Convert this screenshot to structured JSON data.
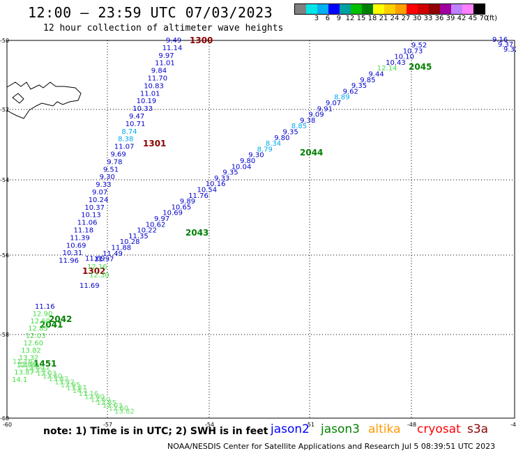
{
  "header": {
    "title": "12:00 — 23:59 UTC 07/03/2023",
    "subtitle": "12 hour collection of altimeter wave heights"
  },
  "legend": {
    "unit_label": "(ft)",
    "bins": [
      {
        "label": "",
        "color": "#808080"
      },
      {
        "label": "3",
        "color": "#00e5e5"
      },
      {
        "label": "6",
        "color": "#00b0f0"
      },
      {
        "label": "9",
        "color": "#0000ff"
      },
      {
        "label": "12",
        "color": "#00a0a0"
      },
      {
        "label": "15",
        "color": "#00c000"
      },
      {
        "label": "18",
        "color": "#008000"
      },
      {
        "label": "21",
        "color": "#ffff00"
      },
      {
        "label": "24",
        "color": "#ffd000"
      },
      {
        "label": "27",
        "color": "#ffa000"
      },
      {
        "label": "30",
        "color": "#ff0000"
      },
      {
        "label": "33",
        "color": "#d00000"
      },
      {
        "label": "36",
        "color": "#900000"
      },
      {
        "label": "39",
        "color": "#a000a0"
      },
      {
        "label": "42",
        "color": "#c080ff"
      },
      {
        "label": "45",
        "color": "#ff80ff"
      },
      {
        "label": "70",
        "color": "#000000"
      }
    ]
  },
  "axes": {
    "lat_labels": [
      "-50",
      "-52",
      "-54",
      "-56",
      "-58",
      "-60"
    ],
    "lon_labels": [
      "-60",
      "-57",
      "-54",
      "-51",
      "-48",
      "-45"
    ]
  },
  "tracks": [
    {
      "id": "track-1300",
      "color": "#0000cc",
      "label": "1300",
      "label_color": "#8b0000",
      "values": [
        "9.49",
        "11.14",
        "9.97",
        "11.01",
        "9.84",
        "11.70",
        "10.83",
        "11.01",
        "10.19",
        "10.33",
        "9.47",
        "10.71",
        "8.74",
        "8.38",
        "11.07",
        "9.69",
        "9.78",
        "9.51",
        "9.30",
        "9.33",
        "9.07",
        "10.24",
        "10.37",
        "10.13",
        "11.06",
        "11.18",
        "11.39",
        "10.69",
        "10.31",
        "11.96"
      ]
    },
    {
      "id": "track-1301",
      "label": "1301",
      "label_color": "#8b0000"
    },
    {
      "id": "track-1302",
      "label": "1302",
      "label_color": "#8b0000",
      "values": [
        "12.30",
        "12.16",
        "11.69"
      ]
    },
    {
      "id": "track-2045",
      "label": "2045",
      "label_color": "#008000",
      "values": [
        "9.52",
        "10.73",
        "10.10",
        "10.43",
        "12.14",
        "9.44",
        "9.85",
        "9.35",
        "9.62",
        "8.89",
        "9.07",
        "9.91",
        "9.09",
        "9.38",
        "8.85",
        "9.35",
        "9.80",
        "8.34",
        "8.79",
        "9.30",
        "9.80",
        "10.04",
        "9.35",
        "9.33",
        "10.16",
        "10.54",
        "11.76",
        "9.89",
        "10.65",
        "10.69",
        "9.97",
        "10.62",
        "10.22",
        "11.35",
        "10.28",
        "11.88",
        "11.49",
        "11.97"
      ]
    },
    {
      "id": "track-2044",
      "label": "2044",
      "label_color": "#008000"
    },
    {
      "id": "track-2043",
      "label": "2043",
      "label_color": "#008000"
    },
    {
      "id": "track-2042",
      "label": "2042",
      "label_color": "#008000",
      "values": [
        "11.16",
        "12.90",
        "12.60",
        "12.85",
        "12.03",
        "12.60",
        "13.82",
        "13.32",
        "12.95",
        "13.87",
        "14.1"
      ]
    },
    {
      "id": "track-2041",
      "label": "2041",
      "label_color": "#008000"
    },
    {
      "id": "track-1451",
      "label": "1451",
      "label_color": "#008000"
    },
    {
      "id": "track-ne",
      "values": [
        "9.16",
        "9.37",
        "9.32"
      ]
    }
  ],
  "footer": {
    "note": "note: 1) Time is in UTC; 2) SWH is in feet",
    "credit": "NOAA/NESDIS Center for Satellite Applications and Research   Jul  5 08:39:51 UTC 2023",
    "satellites": [
      {
        "name": "jason2",
        "color": "#0000ff"
      },
      {
        "name": "jason3",
        "color": "#008000"
      },
      {
        "name": "altika",
        "color": "#ff9900"
      },
      {
        "name": "cryosat",
        "color": "#ff0000"
      },
      {
        "name": "s3a",
        "color": "#8b0000"
      }
    ]
  }
}
